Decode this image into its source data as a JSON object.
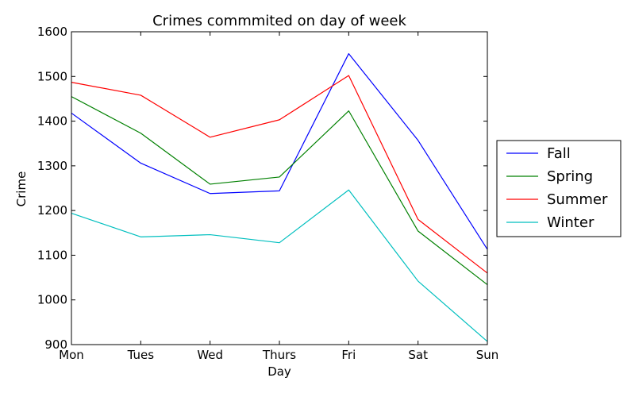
{
  "chart_data": {
    "type": "line",
    "title": "Crimes commmited on day of week",
    "xlabel": "Day",
    "ylabel": "Crime",
    "categories": [
      "Mon",
      "Tues",
      "Wed",
      "Thurs",
      "Fri",
      "Sat",
      "Sun"
    ],
    "ylim": [
      900,
      1600
    ],
    "yticks": [
      900,
      1000,
      1100,
      1200,
      1300,
      1400,
      1500,
      1600
    ],
    "grid": false,
    "legend_position": "right-outside",
    "series": [
      {
        "name": "Fall",
        "color": "#0000ff",
        "values": [
          1418,
          1306,
          1238,
          1244,
          1551,
          1357,
          1113
        ]
      },
      {
        "name": "Spring",
        "color": "#008000",
        "values": [
          1455,
          1373,
          1259,
          1275,
          1423,
          1154,
          1034
        ]
      },
      {
        "name": "Summer",
        "color": "#ff0000",
        "values": [
          1487,
          1458,
          1364,
          1403,
          1502,
          1180,
          1060
        ]
      },
      {
        "name": "Winter",
        "color": "#00bfbf",
        "values": [
          1194,
          1141,
          1146,
          1128,
          1246,
          1042,
          907
        ]
      }
    ]
  }
}
